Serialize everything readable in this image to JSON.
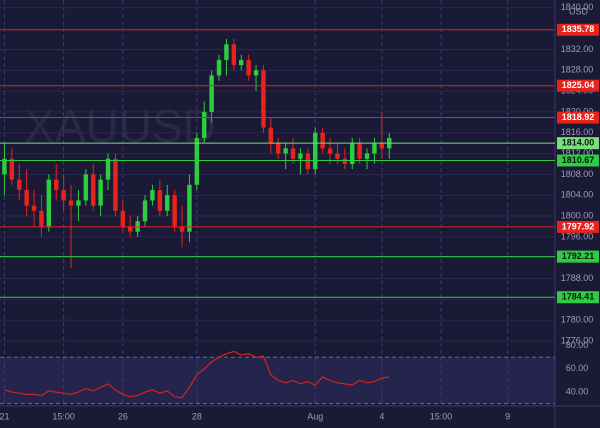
{
  "chart_data": [
    {
      "type": "candlestick",
      "watermark": "XAUUSD",
      "currency": "USD",
      "x": [
        0,
        1,
        2,
        3,
        4,
        5,
        6,
        7,
        8,
        9,
        10,
        11,
        12,
        13,
        14,
        15,
        16,
        17,
        18,
        19,
        20,
        21,
        22,
        23,
        24,
        25,
        26,
        27,
        28,
        29,
        30,
        31,
        32,
        33,
        34,
        35,
        36,
        37,
        38,
        39,
        40,
        41,
        42,
        43,
        44,
        45,
        46,
        47,
        48,
        49,
        50,
        51,
        52
      ],
      "open": [
        1808,
        1811,
        1807,
        1805,
        1802,
        1801,
        1798,
        1807,
        1805,
        1803,
        1802,
        1803,
        1808,
        1802,
        1807,
        1811,
        1801,
        1798,
        1797,
        1799,
        1803,
        1805,
        1801,
        1804,
        1798,
        1797,
        1806,
        1815,
        1820,
        1827,
        1830,
        1833,
        1829,
        1830,
        1827,
        1828,
        1817,
        1814,
        1812,
        1813,
        1811,
        1812,
        1809,
        1816,
        1813,
        1812,
        1811,
        1810,
        1814,
        1811,
        1812,
        1814,
        1813
      ],
      "high": [
        1814,
        1813,
        1810,
        1809,
        1805,
        1804,
        1808,
        1810,
        1808,
        1806,
        1805,
        1809,
        1810,
        1808,
        1812,
        1812,
        1803,
        1800,
        1800,
        1804,
        1806,
        1807,
        1806,
        1805,
        1802,
        1808,
        1816,
        1822,
        1828,
        1831,
        1834,
        1834,
        1831,
        1831,
        1829,
        1829,
        1819,
        1815,
        1814,
        1815,
        1813,
        1813,
        1817,
        1817,
        1815,
        1814,
        1813,
        1815,
        1815,
        1813,
        1815,
        1820,
        1816
      ],
      "low": [
        1804,
        1806,
        1803,
        1800,
        1798,
        1796,
        1797,
        1803,
        1801,
        1790,
        1799,
        1802,
        1801,
        1800,
        1805,
        1800,
        1797,
        1796,
        1796,
        1798,
        1802,
        1800,
        1800,
        1797,
        1794,
        1795,
        1805,
        1814,
        1818,
        1826,
        1827,
        1828,
        1828,
        1826,
        1824,
        1816,
        1812,
        1811,
        1809,
        1810,
        1808,
        1808,
        1808,
        1812,
        1810,
        1810,
        1809,
        1809,
        1810,
        1809,
        1810,
        1811,
        1811
      ],
      "close": [
        1811,
        1807,
        1805,
        1802,
        1801,
        1798,
        1807,
        1805,
        1803,
        1802,
        1803,
        1808,
        1802,
        1807,
        1811,
        1801,
        1798,
        1797,
        1799,
        1803,
        1805,
        1801,
        1804,
        1798,
        1797,
        1806,
        1815,
        1820,
        1827,
        1830,
        1833,
        1829,
        1830,
        1827,
        1828,
        1817,
        1814,
        1812,
        1813,
        1811,
        1812,
        1809,
        1816,
        1813,
        1812,
        1811,
        1810,
        1814,
        1811,
        1812,
        1814,
        1813,
        1815
      ],
      "up_color": "#2ecc40",
      "down_color": "#e8231c",
      "xlim": [
        -0.6,
        74.4
      ],
      "xticks": [
        {
          "value": 0,
          "label": "21"
        },
        {
          "value": 8,
          "label": "15:00"
        },
        {
          "value": 16,
          "label": "26"
        },
        {
          "value": 26,
          "label": "28"
        },
        {
          "value": 42,
          "label": "Aug"
        },
        {
          "value": 51,
          "label": "4"
        },
        {
          "value": 59,
          "label": "15:00"
        },
        {
          "value": 68,
          "label": "9"
        }
      ],
      "ylim": [
        1776,
        1841.5
      ],
      "yticks": [
        {
          "value": 1776,
          "label": "1776.00"
        },
        {
          "value": 1780,
          "label": "1780.00"
        },
        {
          "value": 1784,
          "label": "1784.00"
        },
        {
          "value": 1788,
          "label": "1788.00"
        },
        {
          "value": 1792,
          "label": "1792.00"
        },
        {
          "value": 1796,
          "label": "1796.00"
        },
        {
          "value": 1800,
          "label": "1800.00"
        },
        {
          "value": 1804,
          "label": "1804.00"
        },
        {
          "value": 1808,
          "label": "1808.00"
        },
        {
          "value": 1812,
          "label": "1812.00"
        },
        {
          "value": 1816,
          "label": "1816.00"
        },
        {
          "value": 1820,
          "label": "1820.00"
        },
        {
          "value": 1824,
          "label": "1824.00"
        },
        {
          "value": 1828,
          "label": "1828.00"
        },
        {
          "value": 1832,
          "label": "1832.00"
        },
        {
          "value": 1840,
          "label": "1840.00"
        }
      ],
      "levels": [
        {
          "value": 1835.78,
          "label": "1835.78",
          "color": "#e8231c"
        },
        {
          "value": 1825.04,
          "label": "1825.04",
          "color": "#e8231c"
        },
        {
          "value": 1818.92,
          "label": "1818.92",
          "color": "#e8231c"
        },
        {
          "value": 1814,
          "label": "1814.00",
          "color": "#7be07b"
        },
        {
          "value": 1810.67,
          "label": "1810.67",
          "color": "#2ecc40"
        },
        {
          "value": 1797.92,
          "label": "1797.92",
          "color": "#e8231c"
        },
        {
          "value": 1792.21,
          "label": "1792.21",
          "color": "#2ecc40"
        },
        {
          "value": 1784.41,
          "label": "1784.41",
          "color": "#2ecc40"
        }
      ],
      "grid": true
    },
    {
      "type": "line",
      "x": [
        0,
        1,
        2,
        3,
        4,
        5,
        6,
        7,
        8,
        9,
        10,
        11,
        12,
        13,
        14,
        15,
        16,
        17,
        18,
        19,
        20,
        21,
        22,
        23,
        24,
        25,
        26,
        27,
        28,
        29,
        30,
        31,
        32,
        33,
        34,
        35,
        36,
        37,
        38,
        39,
        40,
        41,
        42,
        43,
        44,
        45,
        46,
        47,
        48,
        49,
        50,
        51,
        52
      ],
      "values": [
        42,
        40,
        39,
        38,
        38,
        37,
        41,
        40,
        39,
        38,
        40,
        43,
        41,
        44,
        47,
        42,
        38,
        36,
        37,
        40,
        42,
        39,
        41,
        36,
        35,
        44,
        55,
        60,
        66,
        70,
        73,
        75,
        72,
        73,
        70,
        71,
        55,
        50,
        48,
        50,
        47,
        49,
        46,
        53,
        50,
        48,
        47,
        46,
        50,
        48,
        49,
        52,
        53
      ],
      "color": "#d0241f",
      "xlim": [
        -0.6,
        74.4
      ],
      "ylim": [
        28,
        84
      ],
      "yticks": [
        {
          "value": 40,
          "label": "40.00"
        },
        {
          "value": 60,
          "label": "60.00"
        },
        {
          "value": 80,
          "label": "80.00"
        }
      ],
      "band": [
        30,
        70
      ]
    }
  ]
}
